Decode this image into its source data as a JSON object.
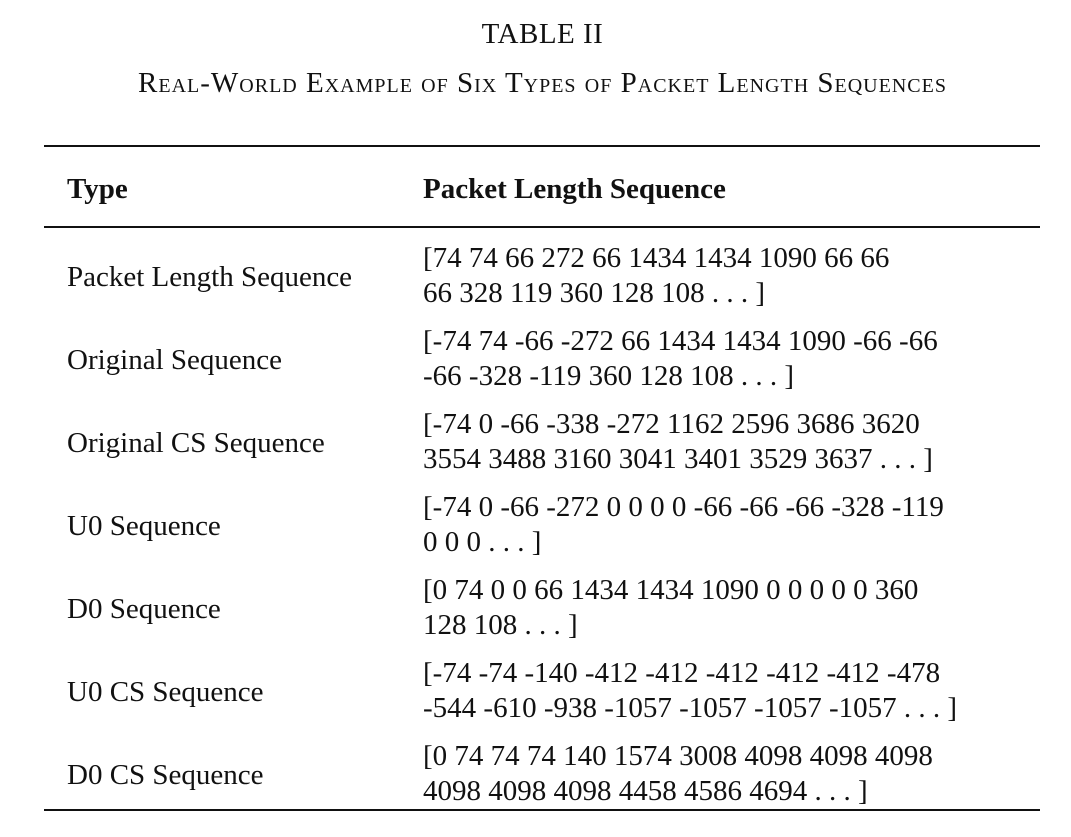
{
  "table": {
    "number": "TABLE II",
    "caption": "Real-World Example of Six Types of Packet Length Sequences",
    "headers": {
      "type": "Type",
      "sequence": "Packet Length Sequence"
    },
    "rows": [
      {
        "type": "Packet Length Sequence",
        "line1": "[74 74 66 272 66 1434 1434 1090 66 66",
        "line2": "66 328 119 360 128 108 . . . ]"
      },
      {
        "type": "Original Sequence",
        "line1": "[-74 74 -66 -272 66 1434 1434 1090 -66 -66",
        "line2": "-66 -328 -119 360 128 108 . . . ]"
      },
      {
        "type": "Original CS Sequence",
        "line1": "[-74 0 -66 -338 -272 1162 2596 3686 3620",
        "line2": "3554 3488 3160 3041 3401 3529 3637 . . . ]"
      },
      {
        "type": "U0 Sequence",
        "line1": "[-74 0 -66 -272 0 0 0 0 -66 -66 -66 -328 -119",
        "line2": "0 0 0 . . . ]"
      },
      {
        "type": "D0 Sequence",
        "line1": "[0 74 0 0 66 1434 1434 1090 0 0 0 0 0 360",
        "line2": "128 108 . . . ]"
      },
      {
        "type": "U0 CS Sequence",
        "line1": "[-74 -74 -140 -412 -412 -412 -412 -412 -478",
        "line2": "-544 -610 -938 -1057 -1057 -1057 -1057 . . . ]"
      },
      {
        "type": "D0 CS Sequence",
        "line1": "[0 74 74 74 140 1574 3008 4098 4098 4098",
        "line2": "4098 4098 4098 4458 4586 4694 . . . ]"
      }
    ]
  }
}
